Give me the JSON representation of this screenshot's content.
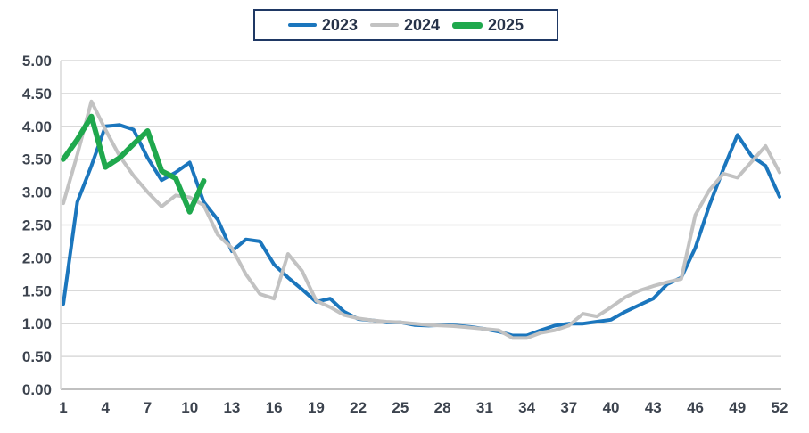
{
  "legend": {
    "items": [
      {
        "label": "2023",
        "color": "#1b76bd",
        "thickness": 4
      },
      {
        "label": "2024",
        "color": "#c2c2c2",
        "thickness": 4
      },
      {
        "label": "2025",
        "color": "#1fa84d",
        "thickness": 7
      }
    ],
    "border_color": "#1f3864",
    "position": "top-center"
  },
  "chart_data": {
    "type": "line",
    "title": "",
    "xlabel": "",
    "ylabel": "",
    "x_unit": "week number",
    "xlim": [
      1,
      52
    ],
    "ylim": [
      0,
      5
    ],
    "x_tick_labels": [
      1,
      4,
      7,
      10,
      13,
      16,
      19,
      22,
      25,
      28,
      31,
      34,
      37,
      40,
      43,
      46,
      49,
      52
    ],
    "y_tick_labels": [
      "0.00",
      "0.50",
      "1.00",
      "1.50",
      "2.00",
      "2.50",
      "3.00",
      "3.50",
      "4.00",
      "4.50",
      "5.00"
    ],
    "grid": true,
    "grid_color": "#d9d9d9",
    "axis_line_color": "#c0c0c0",
    "legend_position": "top-center",
    "series": [
      {
        "name": "2023",
        "color": "#1b76bd",
        "stroke_width": 4,
        "x_start": 1,
        "values": [
          1.3,
          2.85,
          3.4,
          4.0,
          4.02,
          3.95,
          3.52,
          3.18,
          3.3,
          3.45,
          2.85,
          2.58,
          2.1,
          2.28,
          2.25,
          1.9,
          1.7,
          1.52,
          1.33,
          1.38,
          1.18,
          1.07,
          1.05,
          1.02,
          1.02,
          0.98,
          0.97,
          0.98,
          0.97,
          0.95,
          0.92,
          0.88,
          0.82,
          0.82,
          0.9,
          0.97,
          1.0,
          1.0,
          1.03,
          1.06,
          1.18,
          1.28,
          1.38,
          1.6,
          1.7,
          2.15,
          2.8,
          3.35,
          3.87,
          3.55,
          3.4,
          2.93
        ]
      },
      {
        "name": "2024",
        "color": "#c2c2c2",
        "stroke_width": 4,
        "x_start": 1,
        "values": [
          2.83,
          3.57,
          4.38,
          3.95,
          3.55,
          3.25,
          3.0,
          2.78,
          2.95,
          2.92,
          2.8,
          2.35,
          2.15,
          1.75,
          1.45,
          1.38,
          2.06,
          1.8,
          1.35,
          1.25,
          1.13,
          1.08,
          1.05,
          1.03,
          1.02,
          1.0,
          0.98,
          0.97,
          0.96,
          0.94,
          0.92,
          0.9,
          0.78,
          0.78,
          0.86,
          0.9,
          0.97,
          1.15,
          1.11,
          1.25,
          1.4,
          1.5,
          1.57,
          1.63,
          1.68,
          2.65,
          3.03,
          3.28,
          3.22,
          3.46,
          3.7,
          3.3
        ]
      },
      {
        "name": "2025",
        "color": "#1fa84d",
        "stroke_width": 6,
        "x_start": 1,
        "values": [
          3.5,
          3.8,
          4.15,
          3.38,
          3.52,
          3.73,
          3.93,
          3.32,
          3.21,
          2.7,
          3.17
        ]
      }
    ]
  }
}
